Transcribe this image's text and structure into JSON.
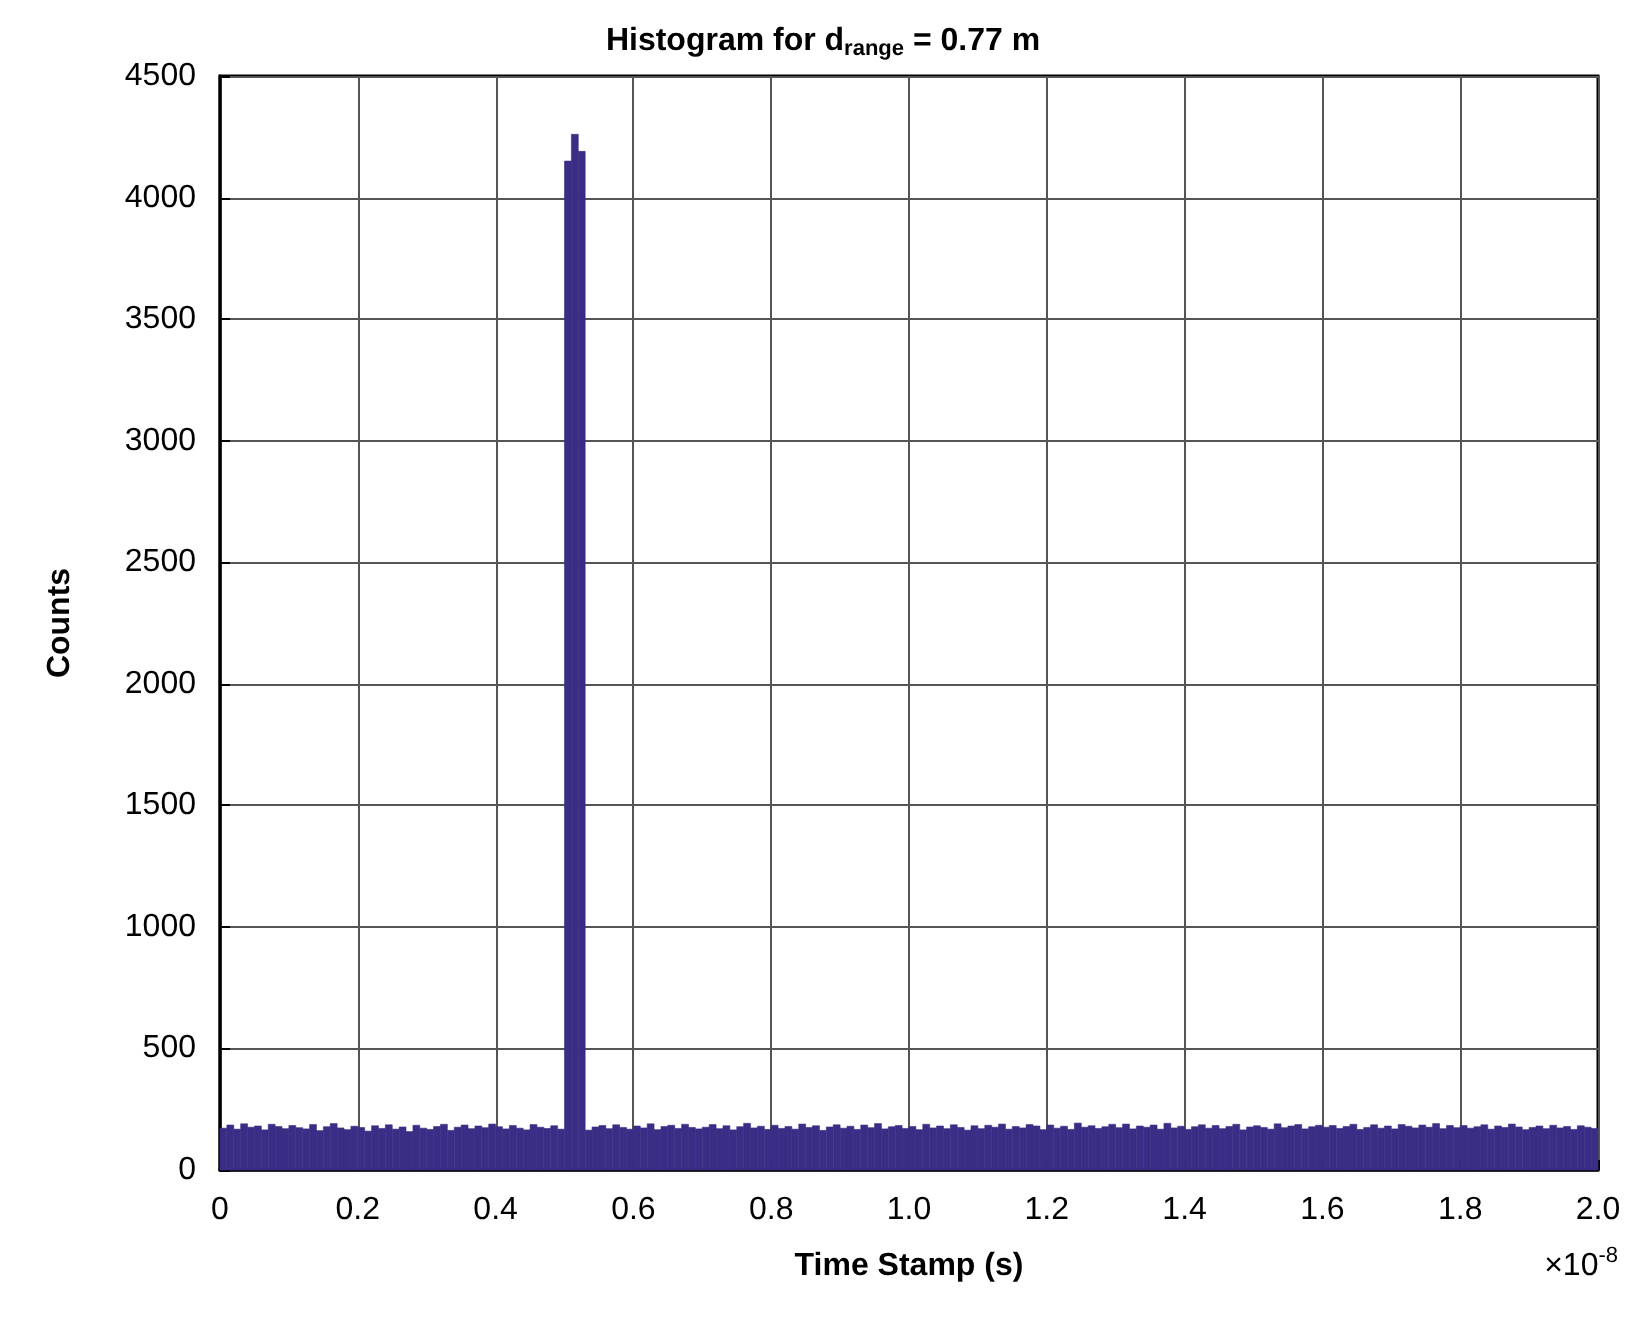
{
  "chart_data": {
    "type": "histogram",
    "title": "Histogram for d$_{range}$ = 0.77 m",
    "xlabel": "Time Stamp (s)",
    "ylabel": "Counts",
    "annotations": [
      "×10$^{-8}$"
    ],
    "color": "#3a2d85",
    "bins": [
      0,
      0.01,
      0.02,
      0.03,
      0.04,
      0.05,
      0.06,
      0.07,
      0.08,
      0.09,
      0.1,
      0.11,
      0.12,
      0.13,
      0.14,
      0.15,
      0.16,
      0.17,
      0.18,
      0.19,
      0.2,
      0.21,
      0.22,
      0.23,
      0.24,
      0.25,
      0.26,
      0.27,
      0.28,
      0.29,
      0.3,
      0.31,
      0.32,
      0.33,
      0.34,
      0.35,
      0.36,
      0.37,
      0.38,
      0.39,
      0.4,
      0.41,
      0.42,
      0.43,
      0.44,
      0.45,
      0.46,
      0.47,
      0.48,
      0.49,
      0.5,
      0.51,
      0.52,
      0.53,
      0.54,
      0.55,
      0.56,
      0.57,
      0.58,
      0.59,
      0.6,
      0.61,
      0.62,
      0.63,
      0.64,
      0.65,
      0.66,
      0.67,
      0.68,
      0.69,
      0.7,
      0.71,
      0.72,
      0.73,
      0.74,
      0.75,
      0.76,
      0.77,
      0.78,
      0.79,
      0.8,
      0.81,
      0.82,
      0.83,
      0.84,
      0.85,
      0.86,
      0.87,
      0.88,
      0.89,
      0.9,
      0.91,
      0.92,
      0.93,
      0.94,
      0.95,
      0.96,
      0.97,
      0.98,
      0.99,
      1,
      1.01,
      1.02,
      1.03,
      1.04,
      1.05,
      1.06,
      1.07,
      1.08,
      1.09,
      1.1,
      1.11,
      1.12,
      1.13,
      1.14,
      1.15,
      1.16,
      1.17,
      1.18,
      1.19,
      1.2,
      1.21,
      1.22,
      1.23,
      1.24,
      1.25,
      1.26,
      1.27,
      1.28,
      1.29,
      1.3,
      1.31,
      1.32,
      1.33,
      1.34,
      1.35,
      1.36,
      1.37,
      1.38,
      1.39,
      1.4,
      1.41,
      1.42,
      1.43,
      1.44,
      1.45,
      1.46,
      1.47,
      1.48,
      1.49,
      1.5,
      1.51,
      1.52,
      1.53,
      1.54,
      1.55,
      1.56,
      1.57,
      1.58,
      1.59,
      1.6,
      1.61,
      1.62,
      1.63,
      1.64,
      1.65,
      1.66,
      1.67,
      1.68,
      1.69,
      1.7,
      1.71,
      1.72,
      1.73,
      1.74,
      1.75,
      1.76,
      1.77,
      1.78,
      1.79,
      1.8,
      1.81,
      1.82,
      1.83,
      1.84,
      1.85,
      1.86,
      1.87,
      1.88,
      1.89,
      1.9,
      1.91,
      1.92,
      1.93,
      1.94,
      1.95,
      1.96,
      1.97,
      1.98,
      1.99,
      2
    ],
    "values": [
      172,
      185,
      168,
      190,
      176,
      181,
      165,
      188,
      179,
      170,
      183,
      174,
      169,
      187,
      162,
      178,
      191,
      173,
      166,
      180,
      175,
      160,
      182,
      171,
      186,
      168,
      177,
      158,
      184,
      172,
      167,
      179,
      188,
      163,
      176,
      185,
      170,
      181,
      174,
      189,
      178,
      169,
      183,
      172,
      165,
      187,
      176,
      171,
      182,
      168,
      4150,
      4260,
      4190,
      164,
      177,
      183,
      170,
      186,
      175,
      168,
      181,
      173,
      190,
      166,
      179,
      184,
      171,
      188,
      175,
      169,
      176,
      187,
      170,
      182,
      165,
      178,
      192,
      173,
      180,
      167,
      184,
      171,
      179,
      168,
      189,
      175,
      182,
      163,
      177,
      186,
      172,
      180,
      167,
      185,
      174,
      191,
      169,
      178,
      183,
      171,
      179,
      166,
      188,
      173,
      181,
      170,
      186,
      175,
      164,
      182,
      170,
      184,
      176,
      189,
      168,
      179,
      173,
      187,
      181,
      166,
      185,
      172,
      180,
      167,
      193,
      176,
      182,
      171,
      178,
      188,
      174,
      189,
      169,
      181,
      176,
      185,
      168,
      192,
      173,
      180,
      167,
      178,
      186,
      172,
      183,
      170,
      179,
      188,
      165,
      177,
      182,
      175,
      168,
      190,
      174,
      181,
      187,
      169,
      178,
      184,
      176,
      183,
      171,
      179,
      188,
      167,
      175,
      186,
      172,
      181,
      169,
      187,
      180,
      173,
      185,
      176,
      191,
      170,
      183,
      174,
      183,
      172,
      178,
      186,
      168,
      181,
      175,
      189,
      177,
      166,
      175,
      181,
      170,
      184,
      173,
      179,
      167,
      182,
      176,
      171
    ],
    "xlim": [
      0,
      2
    ],
    "xticks": [
      0,
      0.2,
      0.4,
      0.6,
      0.8,
      {
        "value": 1,
        "label": "1.0"
      },
      1.2,
      1.4,
      1.6,
      1.8,
      {
        "value": 2,
        "label": "2.0"
      }
    ],
    "ylim": [
      0,
      4500
    ],
    "yticks": [
      0,
      500,
      1000,
      1500,
      2000,
      2500,
      3000,
      3500,
      4000,
      4500
    ],
    "grid": true
  }
}
